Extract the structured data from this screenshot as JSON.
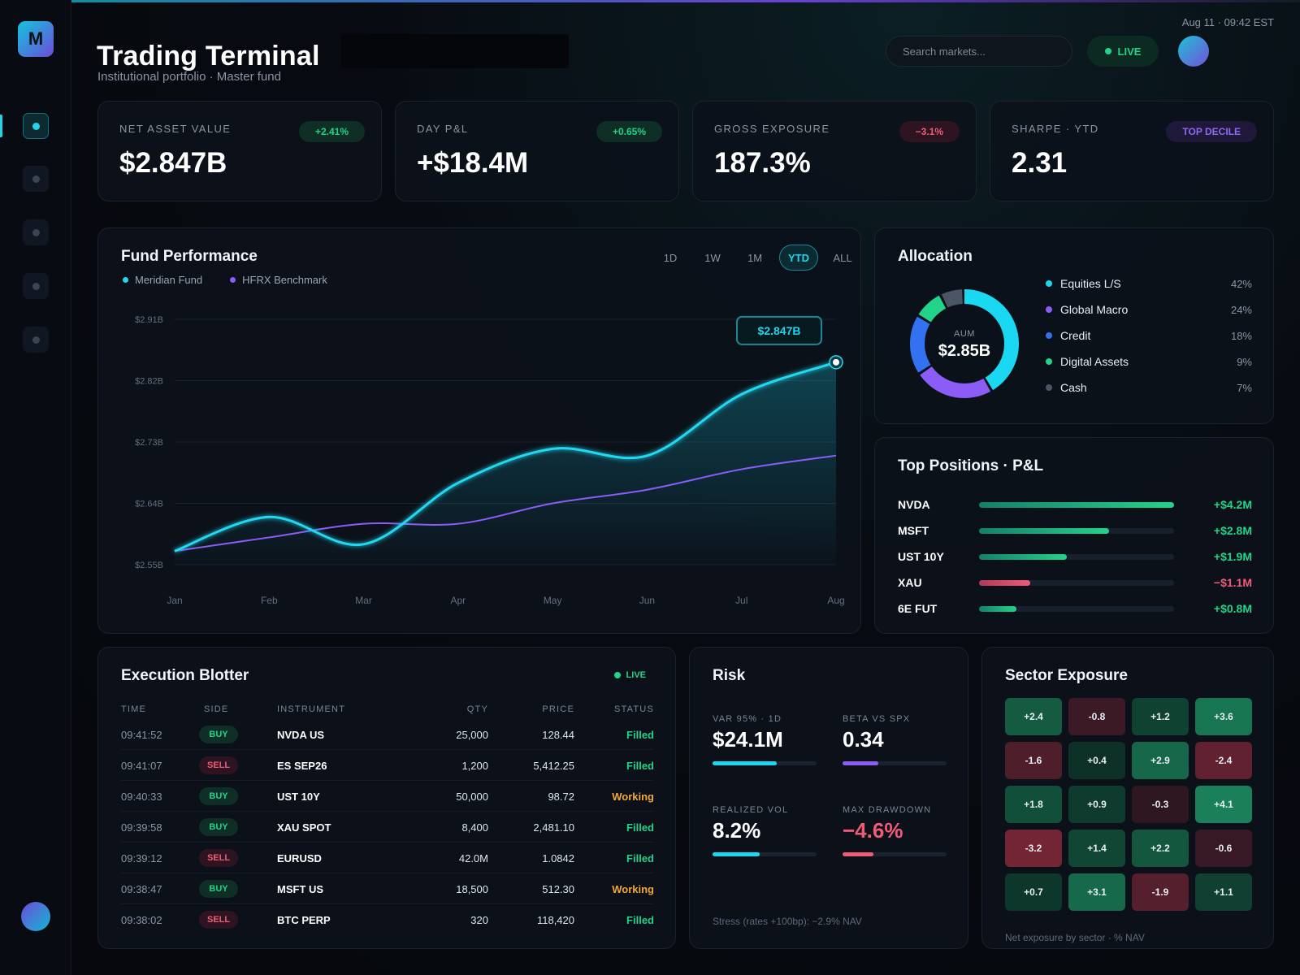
{
  "app": {
    "title": "Trading Terminal",
    "subtitle": "Institutional portfolio · Master fund",
    "logo_letter": "M",
    "clock": "Aug 11 · 09:42 EST",
    "search_placeholder": "Search markets...",
    "live_label": "LIVE"
  },
  "sidebar": {
    "items": [
      {
        "name": "nav-1",
        "active": true
      },
      {
        "name": "nav-2",
        "active": false
      },
      {
        "name": "nav-3",
        "active": false
      },
      {
        "name": "nav-4",
        "active": false
      },
      {
        "name": "nav-5",
        "active": false
      }
    ]
  },
  "kpis": [
    {
      "label": "NET ASSET VALUE",
      "value": "$2.847B",
      "badge": "+2.41%",
      "tone": "green"
    },
    {
      "label": "DAY P&L",
      "value": "+$18.4M",
      "badge": "+0.65%",
      "tone": "green"
    },
    {
      "label": "GROSS EXPOSURE",
      "value": "187.3%",
      "badge": "−3.1%",
      "tone": "red"
    },
    {
      "label": "SHARPE · YTD",
      "value": "2.31",
      "badge": "TOP DECILE",
      "tone": "purple"
    }
  ],
  "performance": {
    "title": "Fund Performance",
    "ranges": [
      "1D",
      "1W",
      "1M",
      "YTD",
      "ALL"
    ],
    "active_range": "YTD",
    "callout": "$2.847B",
    "colors": {
      "fund": "#22d8f0",
      "bench": "#8b5cf6"
    }
  },
  "chart_data": {
    "type": "line",
    "title": "Fund Performance",
    "x": [
      "Jan",
      "Feb",
      "Mar",
      "Apr",
      "May",
      "Jun",
      "Jul",
      "Aug"
    ],
    "y_ticks": [
      "$2.55B",
      "$2.64B",
      "$2.73B",
      "$2.82B",
      "$2.91B"
    ],
    "ylim": [
      2.55,
      2.91
    ],
    "grid": true,
    "legend": "top-left",
    "series": [
      {
        "name": "Meridian Fund",
        "values": [
          2.57,
          2.62,
          2.58,
          2.67,
          2.72,
          2.71,
          2.8,
          2.847
        ]
      },
      {
        "name": "HFRX Benchmark",
        "values": [
          2.57,
          2.59,
          2.61,
          2.61,
          2.64,
          2.66,
          2.69,
          2.71
        ]
      }
    ]
  },
  "allocation": {
    "title": "Allocation",
    "center_label": "AUM",
    "center_value": "$2.85B",
    "items": [
      {
        "name": "Equities L/S",
        "pct": "42%",
        "value": 42,
        "color": "#1ad8f2"
      },
      {
        "name": "Global Macro",
        "pct": "24%",
        "value": 24,
        "color": "#8b5cf6"
      },
      {
        "name": "Credit",
        "pct": "18%",
        "value": 18,
        "color": "#3272f0"
      },
      {
        "name": "Digital Assets",
        "pct": "9%",
        "value": 9,
        "color": "#22d38a"
      },
      {
        "name": "Cash",
        "pct": "7%",
        "value": 7,
        "color": "#4b5566"
      }
    ]
  },
  "positions": {
    "title": "Top Positions · P&L",
    "rows": [
      {
        "name": "NVDA",
        "value": "+$4.2M",
        "fill": 1.0,
        "tone": "green"
      },
      {
        "name": "MSFT",
        "value": "+$2.8M",
        "fill": 0.667,
        "tone": "green"
      },
      {
        "name": "UST 10Y",
        "value": "+$1.9M",
        "fill": 0.452,
        "tone": "green"
      },
      {
        "name": "XAU",
        "value": "−$1.1M",
        "fill": 0.262,
        "tone": "red"
      },
      {
        "name": "6E FUT",
        "value": "+$0.8M",
        "fill": 0.19,
        "tone": "green"
      }
    ]
  },
  "blotter": {
    "title": "Execution Blotter",
    "live_label": "LIVE",
    "headers": {
      "time": "TIME",
      "side": "SIDE",
      "instrument": "INSTRUMENT",
      "qty": "QTY",
      "price": "PRICE",
      "status": "STATUS"
    },
    "rows": [
      {
        "time": "09:41:52",
        "side": "BUY",
        "instrument": "NVDA US",
        "qty": "25,000",
        "price": "128.44",
        "status": "Filled"
      },
      {
        "time": "09:41:07",
        "side": "SELL",
        "instrument": "ES SEP26",
        "qty": "1,200",
        "price": "5,412.25",
        "status": "Filled"
      },
      {
        "time": "09:40:33",
        "side": "BUY",
        "instrument": "UST 10Y",
        "qty": "50,000",
        "price": "98.72",
        "status": "Working"
      },
      {
        "time": "09:39:58",
        "side": "BUY",
        "instrument": "XAU SPOT",
        "qty": "8,400",
        "price": "2,481.10",
        "status": "Filled"
      },
      {
        "time": "09:39:12",
        "side": "SELL",
        "instrument": "EURUSD",
        "qty": "42.0M",
        "price": "1.0842",
        "status": "Filled"
      },
      {
        "time": "09:38:47",
        "side": "BUY",
        "instrument": "MSFT US",
        "qty": "18,500",
        "price": "512.30",
        "status": "Working"
      },
      {
        "time": "09:38:02",
        "side": "SELL",
        "instrument": "BTC PERP",
        "qty": "320",
        "price": "118,420",
        "status": "Filled"
      }
    ]
  },
  "risk": {
    "title": "Risk",
    "metrics": [
      {
        "label": "VAR 95% · 1D",
        "value": "$24.1M",
        "fill": 0.62,
        "color": "#1ad8f2"
      },
      {
        "label": "BETA VS SPX",
        "value": "0.34",
        "fill": 0.34,
        "color": "#8b5cf6"
      },
      {
        "label": "REALIZED VOL",
        "value": "8.2%",
        "fill": 0.45,
        "color": "#1ad8f2"
      },
      {
        "label": "MAX DRAWDOWN",
        "value": "−4.6%",
        "fill": 0.3,
        "color": "#ef5b78"
      }
    ],
    "note": "Stress (rates +100bp): −2.9% NAV"
  },
  "sector": {
    "title": "Sector Exposure",
    "cells": [
      "+2.4",
      "-0.8",
      "+1.2",
      "+3.6",
      "-1.6",
      "+0.4",
      "+2.9",
      "-2.4",
      "+1.8",
      "+0.9",
      "-0.3",
      "+4.1",
      "-3.2",
      "+1.4",
      "+2.2",
      "-0.6",
      "+0.7",
      "+3.1",
      "-1.9",
      "+1.1"
    ],
    "note": "Net exposure by sector · % NAV"
  }
}
